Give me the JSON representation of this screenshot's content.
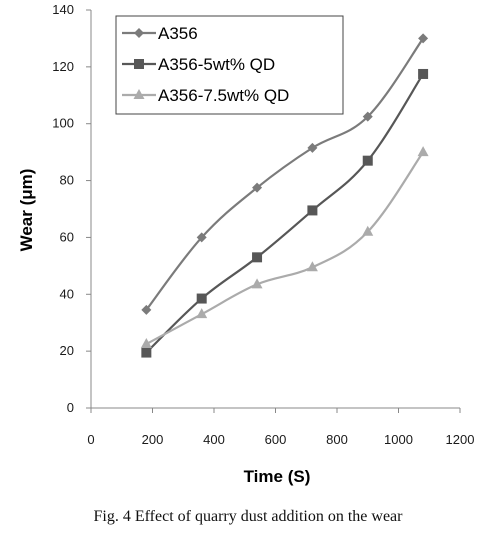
{
  "caption": "Fig. 4 Effect of quarry dust addition on the wear",
  "chart_data": {
    "type": "line",
    "xlabel": "Time (S)",
    "ylabel": "Wear (μm)",
    "xlim": [
      0,
      1200
    ],
    "ylim": [
      0,
      140
    ],
    "x_ticks": [
      "0",
      "200",
      "400",
      "600",
      "800",
      "1000",
      "1200"
    ],
    "y_ticks": [
      "0",
      "20",
      "40",
      "60",
      "80",
      "100",
      "120",
      "140"
    ],
    "grid": false,
    "legend_position": "top-left",
    "x": [
      180,
      360,
      540,
      720,
      900,
      1080
    ],
    "series": [
      {
        "name": "A356",
        "values": [
          34.5,
          60,
          77.5,
          91.5,
          102.5,
          130
        ],
        "color": "#7b7b7b",
        "marker": "diamond"
      },
      {
        "name": "A356-5wt% QD",
        "values": [
          19.5,
          38.5,
          53,
          69.5,
          87,
          117.5
        ],
        "color": "#575757",
        "marker": "square"
      },
      {
        "name": "A356-7.5wt% QD",
        "values": [
          22.5,
          33,
          43.5,
          49.5,
          62,
          90
        ],
        "color": "#ababab",
        "marker": "triangle"
      }
    ]
  }
}
